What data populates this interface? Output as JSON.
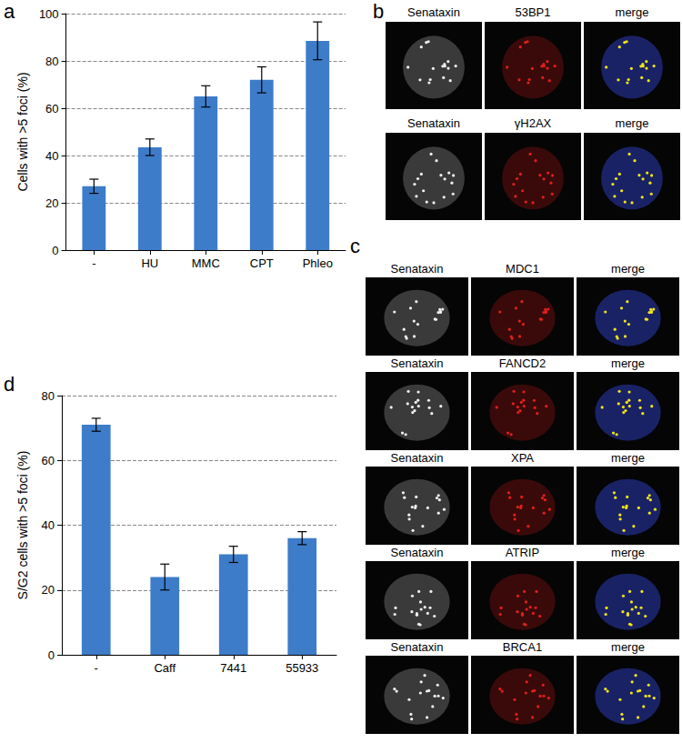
{
  "chart_data": [
    {
      "type": "bar",
      "categories": [
        "-",
        "HU",
        "MMC",
        "CPT",
        "Phleo"
      ],
      "values": [
        27,
        43.5,
        65,
        72,
        88.5
      ],
      "errors": [
        3,
        3.5,
        4.5,
        5.5,
        8
      ],
      "color": "#3d7cc9",
      "y_label": "Cells with >5 foci (%)",
      "ylim": [
        0,
        100
      ],
      "yticks": [
        0,
        20,
        40,
        60,
        80,
        100
      ],
      "grid": true
    },
    {
      "type": "bar",
      "categories": [
        "-",
        "Caff",
        "7441",
        "55933"
      ],
      "values": [
        71,
        24,
        31,
        36
      ],
      "errors": [
        2,
        4,
        2.5,
        2
      ],
      "color": "#3d7cc9",
      "y_label": "S/G2 cells with >5 foci (%)",
      "ylim": [
        0,
        80
      ],
      "yticks": [
        0,
        20,
        40,
        60,
        80
      ],
      "grid": true
    }
  ],
  "figure": {
    "panel_labels": [
      "a",
      "b",
      "c",
      "d"
    ],
    "image_panels": [
      {
        "rows": [
          [
            "Senataxin",
            "53BP1",
            "merge"
          ],
          [
            "Senataxin",
            "γH2AX",
            "merge"
          ]
        ]
      },
      {
        "rows": [
          [
            "Senataxin",
            "MDC1",
            "merge"
          ],
          [
            "Senataxin",
            "FANCD2",
            "merge"
          ],
          [
            "Senataxin",
            "XPA",
            "merge"
          ],
          [
            "Senataxin",
            "ATRIP",
            "merge"
          ],
          [
            "Senataxin",
            "BRCA1",
            "merge"
          ]
        ]
      }
    ]
  }
}
